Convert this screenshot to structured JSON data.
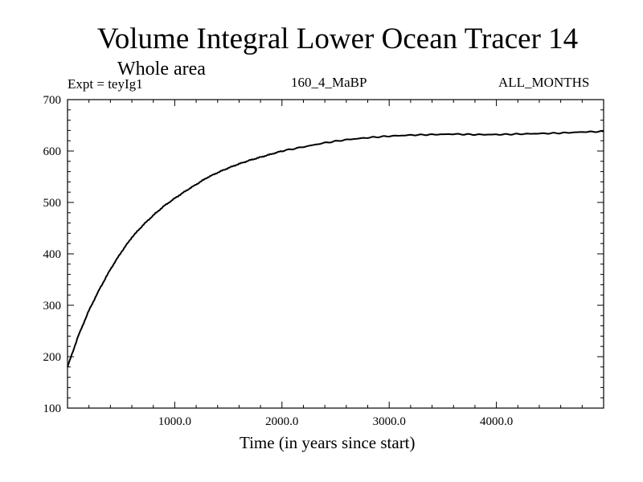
{
  "chart_data": {
    "type": "line",
    "title": "Volume Integral Lower Ocean Tracer 14",
    "subtitle": "Whole area",
    "annotations": {
      "left": "Expt = teyIg1",
      "center": "160_4_MaBP",
      "right": "ALL_MONTHS"
    },
    "xlabel": "Time (in years since start)",
    "ylabel": "",
    "xlim": [
      0,
      5000
    ],
    "ylim": [
      100,
      700
    ],
    "xticks": [
      1000,
      2000,
      3000,
      4000
    ],
    "xtick_labels": [
      "1000.0",
      "2000.0",
      "3000.0",
      "4000.0"
    ],
    "yticks": [
      100,
      200,
      300,
      400,
      500,
      600,
      700
    ],
    "ytick_labels": [
      "100",
      "200",
      "300",
      "400",
      "500",
      "600",
      "700"
    ],
    "grid": false,
    "series": [
      {
        "name": "Volume Integral Lower Ocean Tracer 14",
        "color": "#000000",
        "x": [
          0,
          100,
          200,
          300,
          400,
          500,
          600,
          700,
          800,
          900,
          1000,
          1100,
          1200,
          1300,
          1400,
          1500,
          1600,
          1700,
          1800,
          1900,
          2000,
          2200,
          2400,
          2600,
          2800,
          3000,
          3200,
          3400,
          3600,
          3800,
          4000,
          4200,
          4400,
          4600,
          4800,
          5000
        ],
        "y": [
          180,
          240,
          290,
          332,
          370,
          403,
          432,
          455,
          475,
          493,
          508,
          522,
          535,
          548,
          558,
          567,
          575,
          582,
          588,
          594,
          600,
          608,
          616,
          622,
          626,
          629,
          631,
          632,
          633,
          632,
          632,
          633,
          634,
          635,
          637,
          638
        ]
      }
    ]
  }
}
